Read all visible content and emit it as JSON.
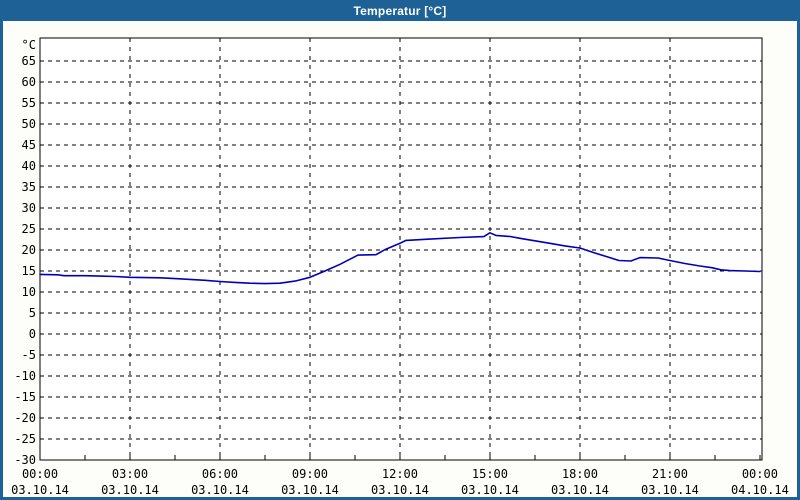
{
  "window": {
    "title": "Temperatur [°C]",
    "colors": {
      "frame": "#1d6196",
      "title_text": "#ffffff",
      "content_bg": "#fdfdfa",
      "plot_bg": "#ffffff",
      "grid": "#000000",
      "axis": "#000000",
      "label": "#000000",
      "line": "#0000b8"
    }
  },
  "chart_data": {
    "type": "line",
    "title": "Temperatur [°C]",
    "y_unit_label": "°C",
    "xlabel": "",
    "ylabel": "",
    "grid": "dashed",
    "legend": "none",
    "ylim": [
      -30,
      70.5
    ],
    "xlim_hours": [
      0,
      24.07
    ],
    "y_tick_step": 5,
    "y_ticks": [
      65,
      60,
      55,
      50,
      45,
      40,
      35,
      30,
      25,
      20,
      15,
      10,
      5,
      0,
      -5,
      -10,
      -15,
      -20,
      -25,
      -30
    ],
    "x_minor_tick_interval_hours": 1.5,
    "x_major_ticks": [
      {
        "hour": 0,
        "time": "00:00",
        "date": "03.10.14"
      },
      {
        "hour": 3,
        "time": "03:00",
        "date": "03.10.14"
      },
      {
        "hour": 6,
        "time": "06:00",
        "date": "03.10.14"
      },
      {
        "hour": 9,
        "time": "09:00",
        "date": "03.10.14"
      },
      {
        "hour": 12,
        "time": "12:00",
        "date": "03.10.14"
      },
      {
        "hour": 15,
        "time": "15:00",
        "date": "03.10.14"
      },
      {
        "hour": 18,
        "time": "18:00",
        "date": "03.10.14"
      },
      {
        "hour": 21,
        "time": "21:00",
        "date": "03.10.14"
      },
      {
        "hour": 24,
        "time": "00:00",
        "date": "04.10.14"
      }
    ],
    "series": [
      {
        "name": "Temperatur",
        "color": "#0000b8",
        "points_hour_degC": [
          [
            0,
            14.2
          ],
          [
            0.6,
            14.1
          ],
          [
            0.8,
            13.9
          ],
          [
            1.5,
            13.9
          ],
          [
            2,
            13.8
          ],
          [
            2.5,
            13.7
          ],
          [
            3,
            13.5
          ],
          [
            4,
            13.4
          ],
          [
            4.5,
            13.2
          ],
          [
            5,
            13.0
          ],
          [
            5.5,
            12.8
          ],
          [
            6,
            12.5
          ],
          [
            6.5,
            12.3
          ],
          [
            7,
            12.1
          ],
          [
            7.5,
            12.0
          ],
          [
            8,
            12.1
          ],
          [
            8.5,
            12.6
          ],
          [
            9,
            13.5
          ],
          [
            9.5,
            15.0
          ],
          [
            10,
            16.6
          ],
          [
            10.6,
            18.8
          ],
          [
            11.2,
            18.9
          ],
          [
            11.5,
            20.1
          ],
          [
            12,
            21.6
          ],
          [
            12.2,
            22.3
          ],
          [
            13,
            22.6
          ],
          [
            14,
            23.0
          ],
          [
            14.8,
            23.2
          ],
          [
            15,
            24.1
          ],
          [
            15.2,
            23.5
          ],
          [
            15.7,
            23.2
          ],
          [
            16,
            22.8
          ],
          [
            16.5,
            22.2
          ],
          [
            17,
            21.6
          ],
          [
            17.5,
            21.0
          ],
          [
            18,
            20.5
          ],
          [
            18.5,
            19.3
          ],
          [
            19,
            18.2
          ],
          [
            19.3,
            17.5
          ],
          [
            19.7,
            17.4
          ],
          [
            20,
            18.2
          ],
          [
            20.6,
            18.1
          ],
          [
            21,
            17.5
          ],
          [
            21.5,
            16.8
          ],
          [
            22,
            16.2
          ],
          [
            22.4,
            15.8
          ],
          [
            22.7,
            15.3
          ],
          [
            23,
            15.1
          ],
          [
            23.5,
            15.0
          ],
          [
            24,
            14.9
          ]
        ]
      }
    ]
  }
}
